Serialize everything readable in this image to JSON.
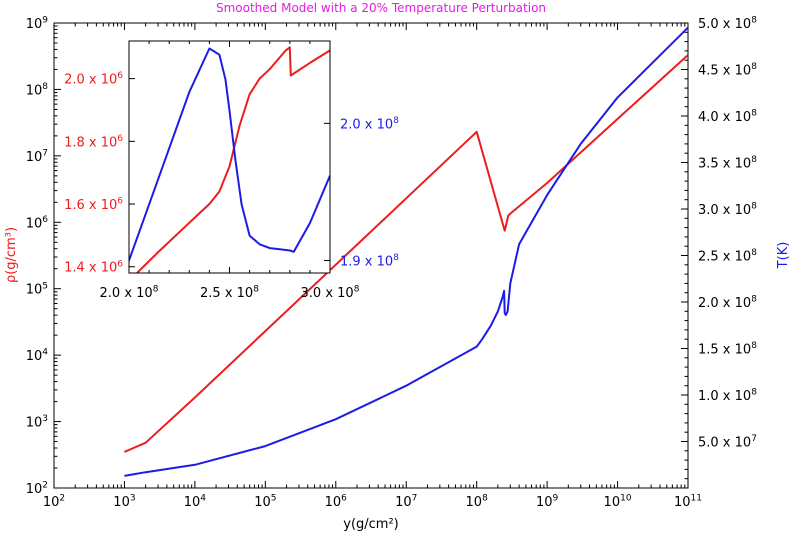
{
  "chart_data": [
    {
      "id": "main",
      "type": "line",
      "title": "Smoothed Model with a 20% Temperature Perturbation",
      "xlabel": "y(g/cm²)",
      "ylabel_left": "ρ(g/cm³)",
      "ylabel_right": "T(K)",
      "x_scale": "log",
      "left_scale": "log",
      "right_scale": "linear",
      "xlim": [
        100,
        100000000000
      ],
      "left_ylim": [
        100,
        1000000000
      ],
      "right_ylim": [
        0,
        500000000
      ],
      "x_ticks": [
        {
          "value": 100,
          "base": "10",
          "exp": "2"
        },
        {
          "value": 1000,
          "base": "10",
          "exp": "3"
        },
        {
          "value": 10000,
          "base": "10",
          "exp": "4"
        },
        {
          "value": 100000,
          "base": "10",
          "exp": "5"
        },
        {
          "value": 1000000,
          "base": "10",
          "exp": "6"
        },
        {
          "value": 10000000,
          "base": "10",
          "exp": "7"
        },
        {
          "value": 100000000,
          "base": "10",
          "exp": "8"
        },
        {
          "value": 1000000000,
          "base": "10",
          "exp": "9"
        },
        {
          "value": 10000000000,
          "base": "10",
          "exp": "10"
        },
        {
          "value": 100000000000,
          "base": "10",
          "exp": "11"
        }
      ],
      "left_ticks": [
        {
          "value": 100,
          "base": "10",
          "exp": "2"
        },
        {
          "value": 1000,
          "base": "10",
          "exp": "3"
        },
        {
          "value": 10000,
          "base": "10",
          "exp": "4"
        },
        {
          "value": 100000,
          "base": "10",
          "exp": "5"
        },
        {
          "value": 1000000,
          "base": "10",
          "exp": "6"
        },
        {
          "value": 10000000,
          "base": "10",
          "exp": "7"
        },
        {
          "value": 100000000,
          "base": "10",
          "exp": "8"
        },
        {
          "value": 1000000000,
          "base": "10",
          "exp": "9"
        }
      ],
      "right_ticks": [
        {
          "value": 50000000,
          "mant": "5.0 x 10",
          "exp": "7"
        },
        {
          "value": 100000000,
          "mant": "1.0 x 10",
          "exp": "8"
        },
        {
          "value": 150000000,
          "mant": "1.5 x 10",
          "exp": "8"
        },
        {
          "value": 200000000,
          "mant": "2.0 x 10",
          "exp": "8"
        },
        {
          "value": 250000000,
          "mant": "2.5 x 10",
          "exp": "8"
        },
        {
          "value": 300000000,
          "mant": "3.0 x 10",
          "exp": "8"
        },
        {
          "value": 350000000,
          "mant": "3.5 x 10",
          "exp": "8"
        },
        {
          "value": 400000000,
          "mant": "4.0 x 10",
          "exp": "8"
        },
        {
          "value": 450000000,
          "mant": "4.5 x 10",
          "exp": "8"
        },
        {
          "value": 500000000,
          "mant": "5.0 x 10",
          "exp": "8"
        }
      ],
      "series": [
        {
          "axis": "left",
          "color": "#ee1c1c",
          "x": [
            1000,
            2000,
            10000,
            100000,
            1000000,
            10000000,
            100000000,
            250000000,
            270000000,
            280000000,
            300000000,
            1000000000,
            10000000000,
            100000000000
          ],
          "y": [
            350,
            480,
            2300,
            23000,
            230000,
            2300000,
            23000000,
            750000,
            1050000,
            1250000,
            1350000,
            3900000,
            36000000,
            330000000
          ]
        },
        {
          "axis": "right",
          "color": "#1c1ce6",
          "x": [
            1000,
            2000,
            10000,
            100000,
            1000000,
            10000000,
            100000000,
            120000000,
            160000000,
            200000000,
            235000000,
            245000000,
            250000000,
            260000000,
            275000000,
            300000000,
            400000000,
            1000000000,
            3000000000,
            10000000000,
            100000000000
          ],
          "y": [
            13000000,
            17000000,
            25000000,
            45000000,
            74000000,
            110000000,
            152000000,
            160000000,
            175000000,
            190000000,
            206000000,
            212000000,
            188000000,
            186000000,
            190000000,
            220000000,
            262000000,
            315000000,
            370000000,
            420000000,
            495000000
          ]
        }
      ]
    },
    {
      "id": "inset",
      "type": "line",
      "x_scale": "linear",
      "xlim": [
        200000000,
        300000000
      ],
      "left_ylim": [
        1380000,
        2120000
      ],
      "right_ylim": [
        188000000,
        206600000
      ],
      "x_ticks": [
        {
          "value": 200000000,
          "mant": "2.0 x 10",
          "exp": "8"
        },
        {
          "value": 250000000,
          "mant": "2.5 x 10",
          "exp": "8"
        },
        {
          "value": 300000000,
          "mant": "3.0 x 10",
          "exp": "8"
        }
      ],
      "left_ticks": [
        {
          "value": 1400000,
          "mant": "1.4 x 10",
          "exp": "6"
        },
        {
          "value": 1600000,
          "mant": "1.6 x 10",
          "exp": "6"
        },
        {
          "value": 1800000,
          "mant": "1.8 x 10",
          "exp": "6"
        },
        {
          "value": 2000000,
          "mant": "2.0 x 10",
          "exp": "6"
        }
      ],
      "right_ticks": [
        {
          "value": 189000000,
          "mant": "1.9 x 10",
          "exp": "8"
        },
        {
          "value": 200000000,
          "mant": "2.0 x 10",
          "exp": "8"
        }
      ],
      "series": [
        {
          "axis": "left",
          "color": "#ee1c1c",
          "x": [
            204000000,
            215000000,
            225000000,
            235000000,
            240000000,
            245000000,
            250000000,
            255000000,
            260000000,
            265000000,
            270000000,
            278000000,
            280000000,
            280500000,
            290000000,
            300000000
          ],
          "y": [
            1380000,
            1450000,
            1510000,
            1570000,
            1600000,
            1640000,
            1720000,
            1850000,
            1950000,
            2000000,
            2030000,
            2090000,
            2100000,
            2010000,
            2050000,
            2090000
          ]
        },
        {
          "axis": "right",
          "color": "#1c1ce6",
          "x": [
            200000000,
            210000000,
            220000000,
            230000000,
            240000000,
            245000000,
            248000000,
            250000000,
            253000000,
            256000000,
            260000000,
            265000000,
            270000000,
            275000000,
            280000000,
            282000000,
            290000000,
            300000000
          ],
          "y": [
            189000000,
            193500000,
            198000000,
            202500000,
            206000000,
            205500000,
            203500000,
            201000000,
            197000000,
            193500000,
            191000000,
            190300000,
            190000000,
            189900000,
            189800000,
            189700000,
            192000000,
            195800000
          ]
        }
      ]
    }
  ]
}
